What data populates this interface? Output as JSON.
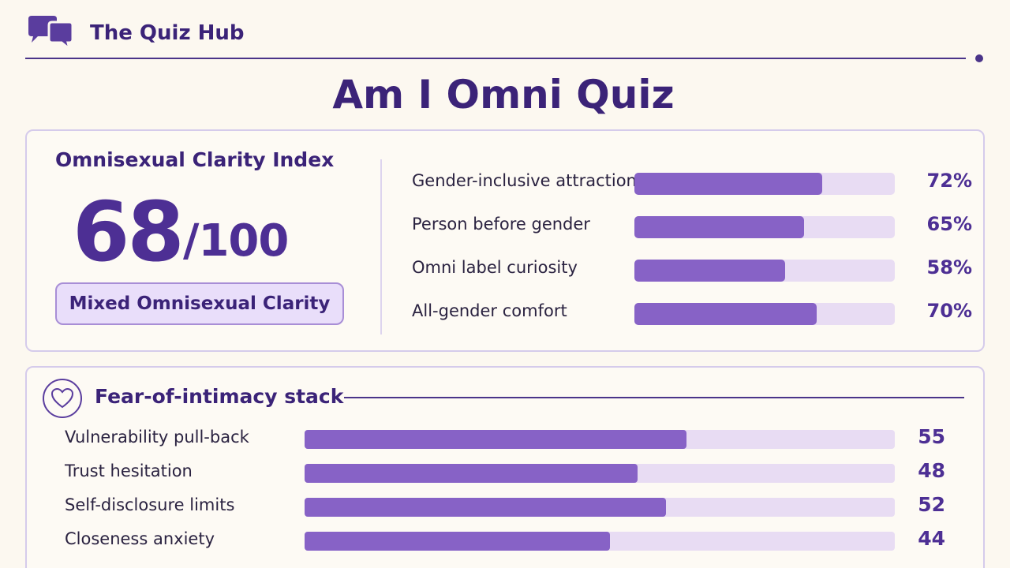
{
  "brand": {
    "name": "The Quiz Hub",
    "icon": "chat-bubbles-icon",
    "color": "#5a3d9e"
  },
  "page": {
    "title": "Am I Omni Quiz"
  },
  "score": {
    "label": "Omnisexual Clarity Index",
    "value": "68",
    "max": "/100",
    "badge": "Mixed Omnisexual Clarity"
  },
  "metrics": [
    {
      "label": "Gender-inclusive attraction",
      "percent": 72,
      "display": "72%"
    },
    {
      "label": "Person before gender",
      "percent": 65,
      "display": "65%"
    },
    {
      "label": "Omni label curiosity",
      "percent": 58,
      "display": "58%"
    },
    {
      "label": "All-gender comfort",
      "percent": 70,
      "display": "70%"
    }
  ],
  "fear": {
    "title": "Fear-of-intimacy stack",
    "icon": "heart-icon",
    "max": 85,
    "items": [
      {
        "label": "Vulnerability pull-back",
        "value": 55,
        "display": "55"
      },
      {
        "label": "Trust hesitation",
        "value": 48,
        "display": "48"
      },
      {
        "label": "Self-disclosure limits",
        "value": 52,
        "display": "52"
      },
      {
        "label": "Closeness anxiety",
        "value": 44,
        "display": "44"
      }
    ]
  },
  "colors": {
    "accent": "#8762c6",
    "track": "#e8dcf3",
    "primary": "#3b2378"
  }
}
